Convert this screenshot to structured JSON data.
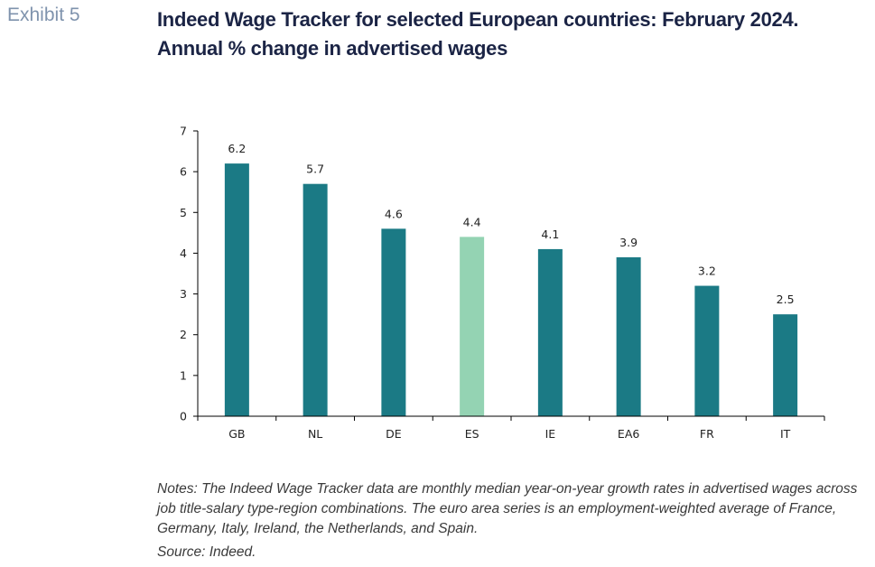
{
  "header": {
    "exhibit": "Exhibit 5",
    "title_line1": "Indeed Wage Tracker for selected European countries: February 2024.",
    "title_line2": "Annual % change in advertised wages"
  },
  "chart_data": {
    "type": "bar",
    "categories": [
      "GB",
      "NL",
      "DE",
      "ES",
      "IE",
      "EA6",
      "FR",
      "IT"
    ],
    "values": [
      6.2,
      5.7,
      4.6,
      4.4,
      4.1,
      3.9,
      3.2,
      2.5
    ],
    "data_labels": [
      "6.2",
      "5.7",
      "4.6",
      "4.4",
      "4.1",
      "3.9",
      "3.2",
      "2.5"
    ],
    "yticks": [
      0,
      1,
      2,
      3,
      4,
      5,
      6,
      7
    ],
    "ylim": [
      0,
      7
    ],
    "title": "",
    "xlabel": "",
    "ylabel": "",
    "grid": false,
    "colors": {
      "default": "#1b7a85",
      "highlight": "#94d3b3",
      "highlight_category": "ES"
    }
  },
  "footer": {
    "notes": "Notes: The Indeed Wage Tracker data are monthly median year-on-year growth rates in advertised wages across job title-salary type-region combinations. The euro area series is an employment-weighted average of France, Germany, Italy, Ireland, the Netherlands, and Spain.",
    "source": "Source: Indeed."
  }
}
